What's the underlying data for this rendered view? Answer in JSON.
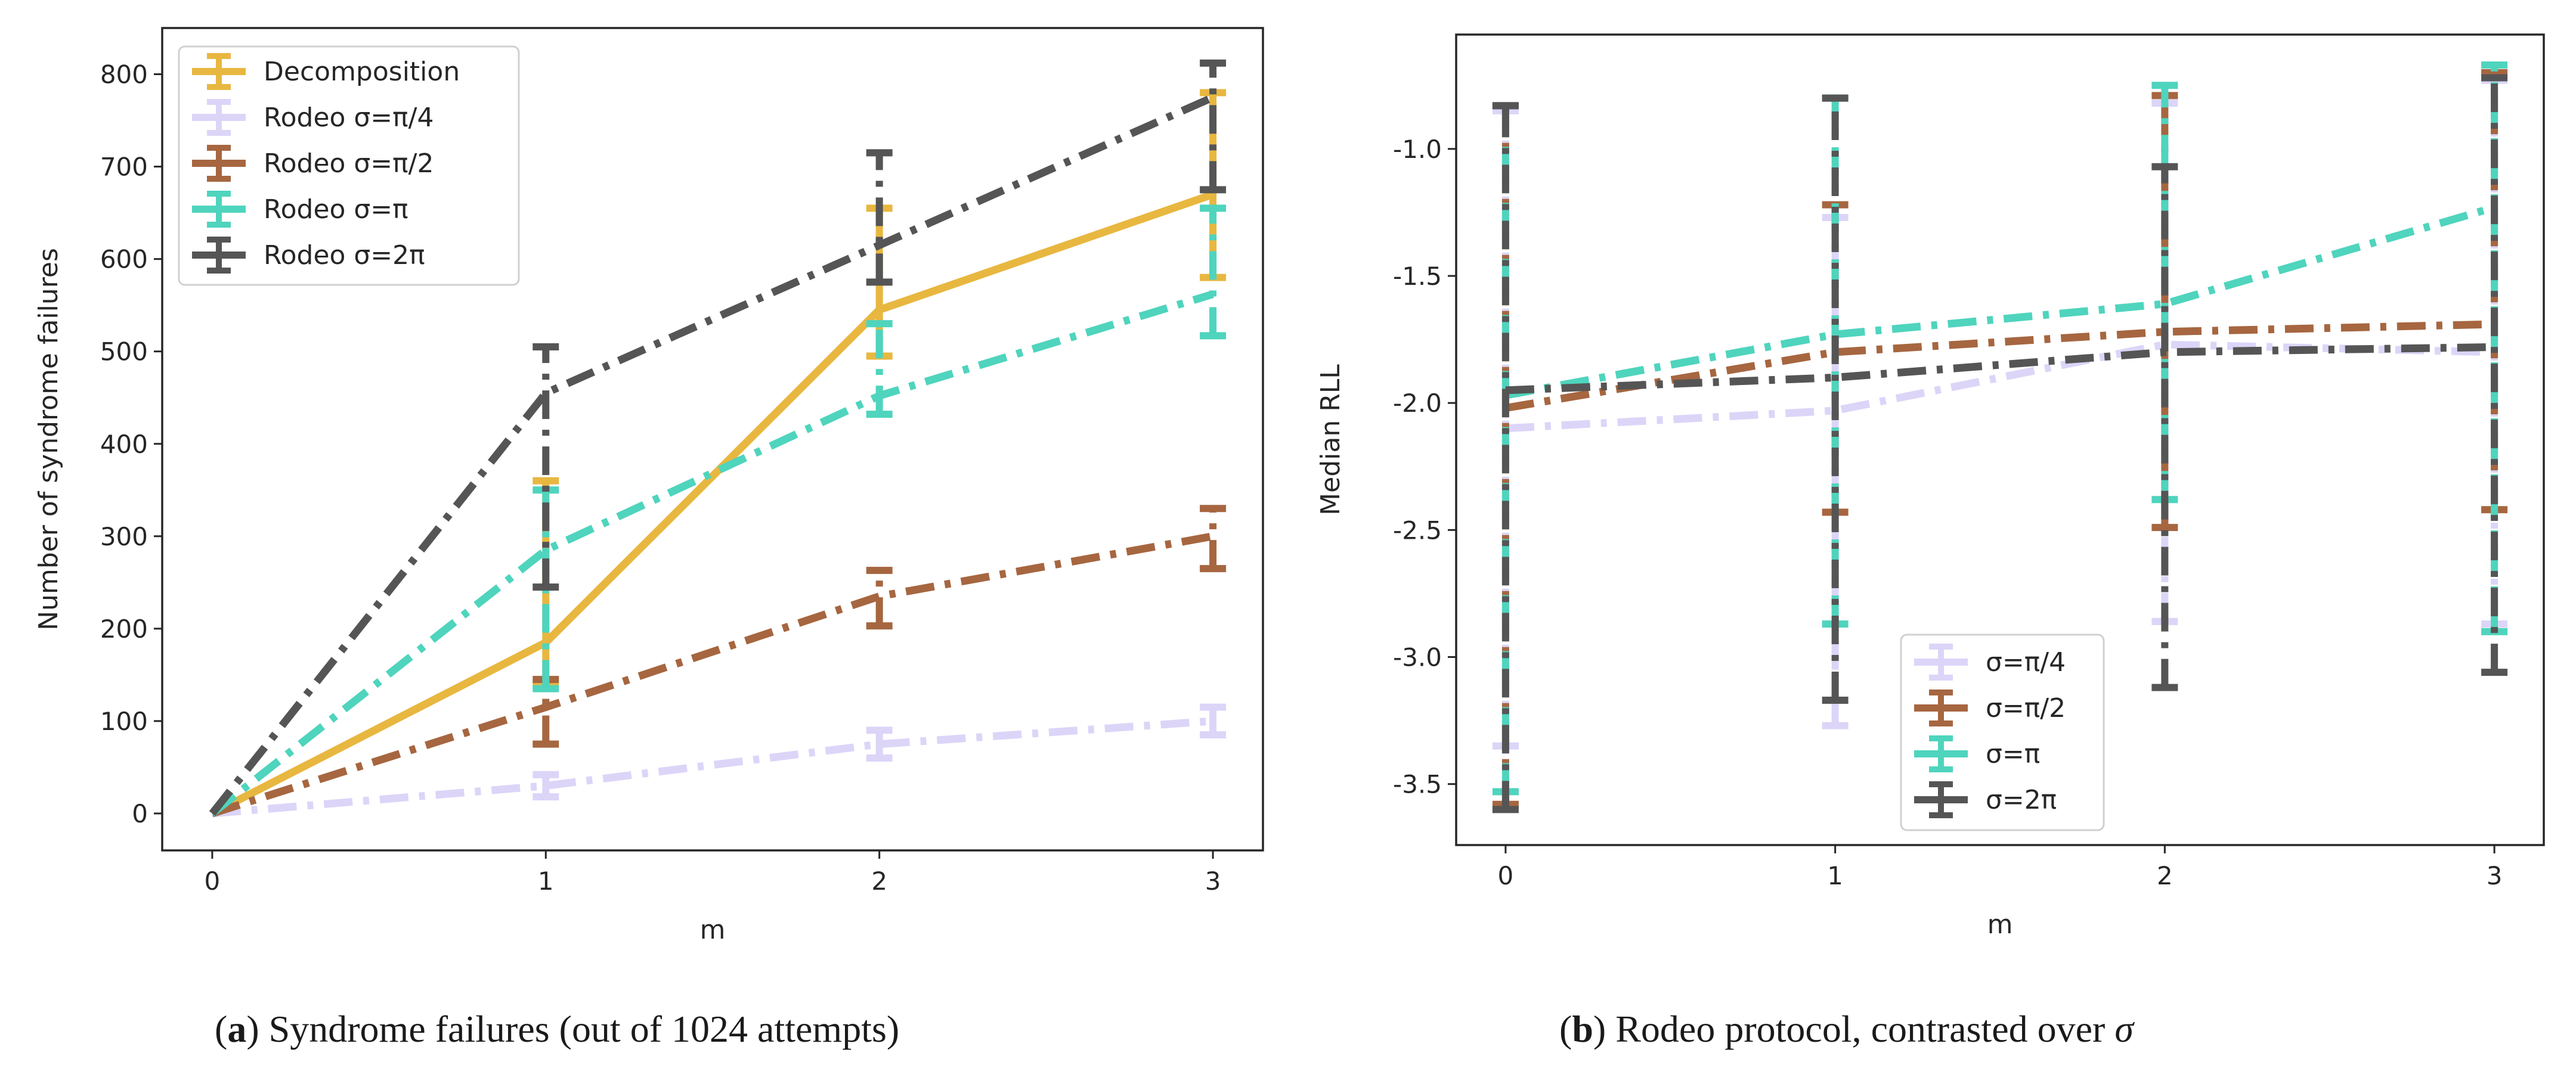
{
  "colors": {
    "decomposition": "#E8B740",
    "pi4": "#DCD5F8",
    "pi2": "#A66640",
    "pi": "#4FD4BD",
    "twopi": "#555555"
  },
  "chart_data": [
    {
      "type": "line",
      "panel": "a",
      "xlabel": "m",
      "ylabel": "Number of syndrome failures",
      "x": [
        0,
        1,
        2,
        3
      ],
      "xlim": [
        -0.15,
        3.15
      ],
      "ylim": [
        -40,
        850
      ],
      "xticks": [
        "0",
        "1",
        "2",
        "3"
      ],
      "yticks": [
        "0",
        "100",
        "200",
        "300",
        "400",
        "500",
        "600",
        "700",
        "800"
      ],
      "legend_position": "upper-left",
      "series": [
        {
          "name": "Decomposition",
          "color_key": "decomposition",
          "linestyle": "solid",
          "values": [
            0,
            185,
            545,
            670
          ],
          "err_low": [
            0,
            45,
            50,
            90
          ],
          "err_high": [
            0,
            175,
            110,
            110
          ]
        },
        {
          "name": "Rodeo σ=π/4",
          "color_key": "pi4",
          "linestyle": "dashdot",
          "values": [
            0,
            30,
            75,
            100
          ],
          "err_low": [
            0,
            12,
            15,
            15
          ],
          "err_high": [
            0,
            12,
            15,
            15
          ]
        },
        {
          "name": "Rodeo σ=π/2",
          "color_key": "pi2",
          "linestyle": "dashdot",
          "values": [
            0,
            115,
            235,
            300
          ],
          "err_low": [
            0,
            40,
            32,
            35
          ],
          "err_high": [
            0,
            30,
            28,
            30
          ]
        },
        {
          "name": "Rodeo σ=π",
          "color_key": "pi",
          "linestyle": "dashdot",
          "values": [
            0,
            285,
            452,
            562
          ],
          "err_low": [
            0,
            150,
            20,
            45
          ],
          "err_high": [
            0,
            65,
            78,
            93
          ]
        },
        {
          "name": "Rodeo σ=2π",
          "color_key": "twopi",
          "linestyle": "dashdot",
          "values": [
            0,
            455,
            615,
            775
          ],
          "err_low": [
            0,
            210,
            40,
            100
          ],
          "err_high": [
            0,
            50,
            100,
            37
          ]
        }
      ],
      "caption_label": "a",
      "caption_text": "Syndrome failures (out of 1024 attempts)"
    },
    {
      "type": "line",
      "panel": "b",
      "xlabel": "m",
      "ylabel": "Median RLL",
      "x": [
        0,
        1,
        2,
        3
      ],
      "xlim": [
        -0.15,
        3.15
      ],
      "ylim": [
        -3.74,
        -0.55
      ],
      "xticks": [
        "0",
        "1",
        "2",
        "3"
      ],
      "yticks": [
        "-1.0",
        "-1.5",
        "-2.0",
        "-2.5",
        "-3.0",
        "-3.5"
      ],
      "ytick_values": [
        -1.0,
        -1.5,
        -2.0,
        -2.5,
        -3.0,
        -3.5
      ],
      "legend_position": "lower-center",
      "series": [
        {
          "name": "σ=π/4",
          "color_key": "pi4",
          "linestyle": "dashdot",
          "values": [
            -2.1,
            -2.03,
            -1.77,
            -1.8
          ],
          "err_low": [
            -3.35,
            -3.27,
            -2.86,
            -2.87
          ],
          "err_high": [
            -0.85,
            -1.27,
            -0.82,
            -0.73
          ]
        },
        {
          "name": "σ=π/2",
          "color_key": "pi2",
          "linestyle": "dashdot",
          "values": [
            -2.02,
            -1.8,
            -1.72,
            -1.69
          ],
          "err_low": [
            -3.58,
            -2.43,
            -2.49,
            -2.42
          ],
          "err_high": [
            -0.83,
            -1.22,
            -0.79,
            -0.7
          ]
        },
        {
          "name": "σ=π",
          "color_key": "pi",
          "linestyle": "dashdot",
          "values": [
            -1.97,
            -1.73,
            -1.61,
            -1.23
          ],
          "err_low": [
            -3.53,
            -2.87,
            -2.38,
            -2.9
          ],
          "err_high": [
            -0.83,
            -0.8,
            -0.75,
            -0.67
          ]
        },
        {
          "name": "σ=2π",
          "color_key": "twopi",
          "linestyle": "dashdot",
          "values": [
            -1.95,
            -1.9,
            -1.8,
            -1.78
          ],
          "err_low": [
            -3.6,
            -3.17,
            -3.12,
            -3.06
          ],
          "err_high": [
            -0.83,
            -0.8,
            -1.07,
            -0.72
          ]
        }
      ],
      "caption_label": "b",
      "caption_text": "Rodeo protocol, contrasted over",
      "caption_symbol": "σ"
    }
  ]
}
